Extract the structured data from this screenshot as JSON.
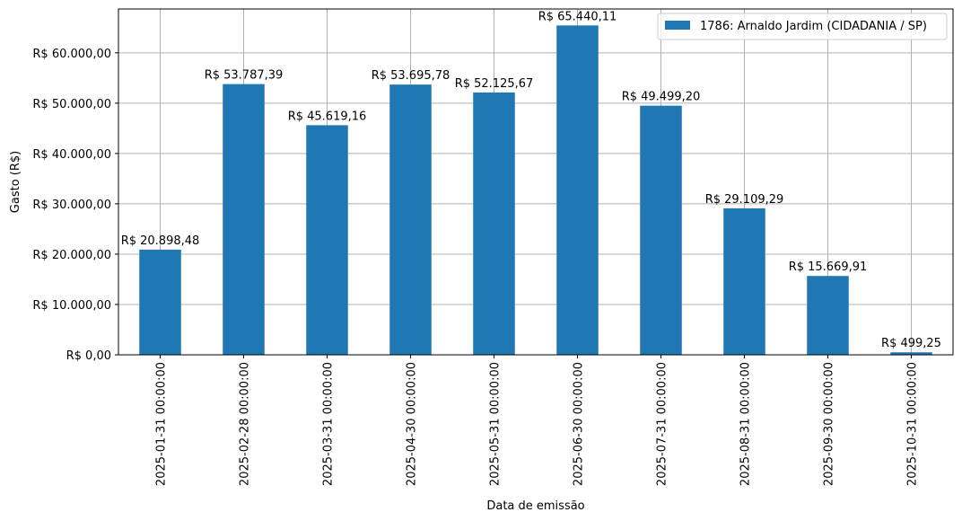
{
  "chart_data": {
    "type": "bar",
    "title": "",
    "xlabel": "Data de emissão",
    "ylabel": "Gasto (R$)",
    "categories": [
      "2025-01-31 00:00:00",
      "2025-02-28 00:00:00",
      "2025-03-31 00:00:00",
      "2025-04-30 00:00:00",
      "2025-05-31 00:00:00",
      "2025-06-30 00:00:00",
      "2025-07-31 00:00:00",
      "2025-08-31 00:00:00",
      "2025-09-30 00:00:00",
      "2025-10-31 00:00:00"
    ],
    "series": [
      {
        "name": "1786: Arnaldo Jardim (CIDADANIA / SP)",
        "color": "#1f77b4",
        "values": [
          20898.48,
          53787.39,
          45619.16,
          53695.78,
          52125.67,
          65440.11,
          49499.2,
          29109.29,
          15669.91,
          499.25
        ],
        "labels": [
          "R$ 20.898,48",
          "R$ 53.787,39",
          "R$ 45.619,16",
          "R$ 53.695,78",
          "R$ 52.125,67",
          "R$ 65.440,11",
          "R$ 49.499,20",
          "R$ 29.109,29",
          "R$ 15.669,91",
          "R$ 499,25"
        ]
      }
    ],
    "ylim": [
      0,
      68712
    ],
    "yticks": [
      0,
      10000,
      20000,
      30000,
      40000,
      50000,
      60000
    ],
    "ytick_labels": [
      "R$ 0,00",
      "R$ 10.000,00",
      "R$ 20.000,00",
      "R$ 30.000,00",
      "R$ 40.000,00",
      "R$ 50.000,00",
      "R$ 60.000,00"
    ],
    "grid": true,
    "legend_position": "top-right"
  }
}
